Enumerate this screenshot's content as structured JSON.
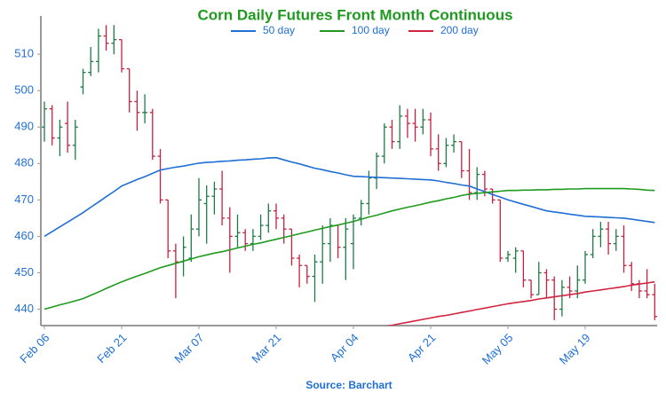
{
  "chart_data": {
    "type": "ohlc",
    "title": "Corn Daily Futures Front Month Continuous",
    "source": "Source: Barchart",
    "categories": [
      "Feb 06",
      null,
      null,
      null,
      null,
      null,
      null,
      null,
      null,
      null,
      "Feb 21",
      null,
      null,
      null,
      null,
      null,
      null,
      null,
      null,
      null,
      "Mar 07",
      null,
      null,
      null,
      null,
      null,
      null,
      null,
      null,
      null,
      "Mar 21",
      null,
      null,
      null,
      null,
      null,
      null,
      null,
      null,
      null,
      "Apr 04",
      null,
      null,
      null,
      null,
      null,
      null,
      null,
      null,
      null,
      "Apr 21",
      null,
      null,
      null,
      null,
      null,
      null,
      null,
      null,
      null,
      "May 05",
      null,
      null,
      null,
      null,
      null,
      null,
      null,
      null,
      null,
      "May 19",
      null,
      null,
      null,
      null,
      null,
      null,
      null,
      null,
      null
    ],
    "open": [
      490,
      495,
      487,
      491,
      485,
      501,
      505,
      508,
      515,
      513,
      514,
      506,
      497,
      494,
      494,
      482,
      470,
      456,
      453,
      454,
      462,
      469,
      471,
      473,
      465,
      460,
      461,
      458,
      460,
      463,
      467,
      465,
      462,
      454,
      452,
      449,
      453,
      458,
      463,
      457,
      458,
      465,
      469,
      476,
      482,
      490,
      486,
      493,
      491,
      490,
      492,
      484,
      480,
      485,
      486,
      478,
      472,
      477,
      473,
      470,
      454,
      454,
      456,
      448,
      444,
      450,
      448,
      440,
      446,
      445,
      448,
      455,
      460,
      462,
      458,
      460,
      452,
      447,
      445,
      444
    ],
    "high": [
      497,
      496,
      492,
      497,
      492,
      506,
      512,
      517,
      518,
      518,
      514,
      506,
      500,
      499,
      495,
      484,
      470,
      458,
      460,
      466,
      476,
      474,
      475,
      478,
      468,
      466,
      462,
      462,
      466,
      469,
      469,
      466,
      462,
      455,
      452,
      455,
      463,
      465,
      463,
      465,
      466,
      470,
      478,
      483,
      491,
      492,
      496,
      495,
      495,
      495,
      494,
      488,
      487,
      488,
      486,
      484,
      479,
      478,
      473,
      470,
      456,
      457,
      456,
      448,
      453,
      451,
      449,
      448,
      449,
      452,
      456,
      462,
      464,
      464,
      462,
      463,
      453,
      448,
      451,
      447
    ],
    "low": [
      486,
      485,
      482,
      483,
      481,
      499,
      504,
      505,
      511,
      510,
      505,
      494,
      489,
      491,
      481,
      469,
      454,
      443,
      449,
      453,
      460,
      458,
      466,
      463,
      450,
      457,
      456,
      456,
      459,
      461,
      462,
      458,
      452,
      446,
      447,
      442,
      447,
      453,
      454,
      448,
      451,
      463,
      466,
      473,
      480,
      484,
      484,
      487,
      486,
      488,
      482,
      478,
      479,
      483,
      476,
      470,
      470,
      471,
      469,
      453,
      453,
      450,
      446,
      443,
      444,
      443,
      437,
      438,
      443,
      443,
      447,
      454,
      457,
      455,
      456,
      450,
      445,
      443,
      443,
      437
    ],
    "close": [
      495,
      487,
      490,
      485,
      490,
      505,
      508,
      515,
      513,
      514,
      506,
      497,
      494,
      494,
      482,
      470,
      456,
      453,
      457,
      462,
      470,
      471,
      473,
      465,
      460,
      461,
      458,
      460,
      463,
      467,
      465,
      462,
      454,
      452,
      449,
      453,
      458,
      463,
      457,
      462,
      465,
      469,
      476,
      482,
      490,
      486,
      493,
      491,
      490,
      492,
      484,
      480,
      485,
      486,
      478,
      472,
      477,
      473,
      470,
      454,
      455,
      456,
      448,
      444,
      450,
      448,
      440,
      446,
      445,
      448,
      455,
      460,
      462,
      458,
      460,
      452,
      447,
      445,
      444,
      438
    ],
    "up_color": "#1e7b45",
    "down_color": "#c8213f",
    "series": [
      {
        "name": "50 day",
        "color": "#1f6fd6",
        "values": [
          460,
          461.3,
          462.6,
          463.9,
          465.2,
          466.5,
          468,
          469.4,
          470.9,
          472.3,
          473.8,
          474.7,
          475.6,
          476.4,
          477.3,
          478.2,
          478.6,
          479,
          479.3,
          479.7,
          480.1,
          480.3,
          480.4,
          480.6,
          480.7,
          480.9,
          481,
          481.2,
          481.3,
          481.5,
          481.6,
          481,
          480.4,
          479.9,
          479.3,
          478.7,
          478.3,
          477.8,
          477.4,
          476.9,
          476.5,
          476.4,
          476.3,
          476.2,
          476.1,
          476,
          475.9,
          475.8,
          475.7,
          475.6,
          475.5,
          475.2,
          474.8,
          474.5,
          474.1,
          473.8,
          473,
          472.3,
          471.5,
          470.8,
          470,
          469.4,
          468.8,
          468.2,
          467.6,
          467,
          466.7,
          466.4,
          466.1,
          465.8,
          465.5,
          465.4,
          465.3,
          465.2,
          465.1,
          465,
          464.7,
          464.4,
          464.1,
          463.8
        ]
      },
      {
        "name": "100 day",
        "color": "#1f9a1f",
        "values": [
          440,
          440.6,
          441.2,
          441.7,
          442.3,
          442.9,
          443.8,
          444.7,
          445.7,
          446.6,
          447.5,
          448.3,
          449.1,
          449.8,
          450.6,
          451.4,
          452,
          452.6,
          453.2,
          453.8,
          454.4,
          454.9,
          455.4,
          455.8,
          456.3,
          456.8,
          457.3,
          457.8,
          458.2,
          458.7,
          459.2,
          459.7,
          460.2,
          460.7,
          461.2,
          461.7,
          462.2,
          462.7,
          463.1,
          463.6,
          464.1,
          464.7,
          465.3,
          465.8,
          466.4,
          467,
          467.5,
          468,
          468.4,
          468.9,
          469.4,
          469.8,
          470.3,
          470.7,
          471.2,
          471.6,
          471.8,
          472,
          472.2,
          472.4,
          472.6,
          472.6,
          472.7,
          472.7,
          472.8,
          472.8,
          472.9,
          472.9,
          473,
          473,
          473.1,
          473.1,
          473.1,
          473.1,
          473.1,
          473.1,
          473,
          472.9,
          472.7,
          472.6
        ]
      },
      {
        "name": "200 day",
        "color": "#d0243f",
        "values": [
          null,
          null,
          null,
          null,
          null,
          null,
          null,
          null,
          null,
          null,
          null,
          null,
          null,
          null,
          null,
          null,
          null,
          null,
          null,
          null,
          null,
          null,
          null,
          null,
          null,
          null,
          null,
          null,
          null,
          null,
          null,
          null,
          null,
          null,
          null,
          null,
          null,
          null,
          null,
          null,
          null,
          null,
          null,
          null,
          435.2,
          435.6,
          436,
          436.4,
          436.8,
          437.2,
          437.6,
          438,
          438.3,
          438.7,
          439.1,
          439.5,
          439.9,
          440.3,
          440.7,
          441.1,
          441.5,
          441.8,
          442.1,
          442.4,
          442.8,
          443.1,
          443.4,
          443.7,
          444,
          444.3,
          444.7,
          445,
          445.3,
          445.6,
          445.9,
          446.2,
          446.6,
          446.9,
          447.2,
          447.5
        ]
      }
    ],
    "ylim": [
      435.5,
      520.5
    ],
    "yticks": [
      440,
      450,
      460,
      470,
      480,
      490,
      500,
      510
    ],
    "grid": false
  }
}
